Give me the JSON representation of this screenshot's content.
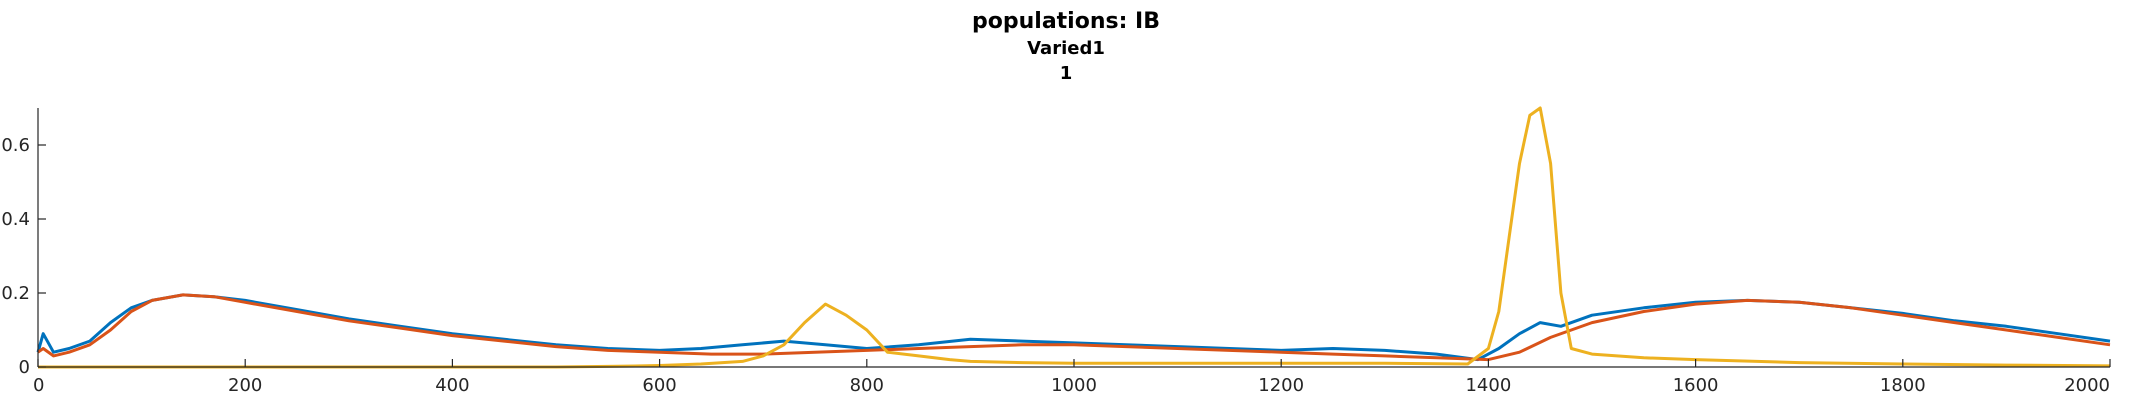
{
  "chart_data": {
    "type": "line",
    "title": "populations: IB",
    "subtitle_lines": [
      "Varied1",
      "1"
    ],
    "xlabel": "",
    "ylabel": "",
    "xlim": [
      0,
      2000
    ],
    "ylim": [
      0,
      0.7
    ],
    "x_ticks": [
      0,
      200,
      400,
      600,
      800,
      1000,
      1200,
      1400,
      1600,
      1800,
      2000
    ],
    "x_tick_labels": [
      "0",
      "200",
      "400",
      "600",
      "800",
      "1000",
      "1200",
      "1400",
      "1600",
      "1800",
      "2000"
    ],
    "y_ticks": [
      0,
      0.2,
      0.4,
      0.6
    ],
    "y_tick_labels": [
      "0",
      "0.2",
      "0.4",
      "0.6"
    ],
    "grid": false,
    "legend": "none",
    "series": [
      {
        "color": "#0072BD",
        "x": [
          0,
          5,
          15,
          30,
          50,
          70,
          90,
          110,
          140,
          170,
          200,
          250,
          300,
          350,
          400,
          450,
          500,
          550,
          600,
          640,
          680,
          720,
          760,
          800,
          850,
          900,
          950,
          1000,
          1050,
          1100,
          1150,
          1200,
          1250,
          1300,
          1350,
          1390,
          1410,
          1430,
          1450,
          1470,
          1500,
          1550,
          1600,
          1650,
          1700,
          1750,
          1800,
          1850,
          1900,
          1950,
          2000
        ],
        "y": [
          0.04,
          0.09,
          0.04,
          0.05,
          0.07,
          0.12,
          0.16,
          0.18,
          0.195,
          0.19,
          0.18,
          0.155,
          0.13,
          0.11,
          0.09,
          0.075,
          0.06,
          0.05,
          0.045,
          0.05,
          0.06,
          0.07,
          0.06,
          0.05,
          0.06,
          0.075,
          0.07,
          0.065,
          0.06,
          0.055,
          0.05,
          0.045,
          0.05,
          0.045,
          0.035,
          0.02,
          0.05,
          0.09,
          0.12,
          0.11,
          0.14,
          0.16,
          0.175,
          0.18,
          0.175,
          0.16,
          0.145,
          0.125,
          0.11,
          0.09,
          0.07
        ]
      },
      {
        "color": "#D95319",
        "x": [
          0,
          5,
          15,
          30,
          50,
          70,
          90,
          110,
          140,
          170,
          200,
          250,
          300,
          350,
          400,
          450,
          500,
          550,
          600,
          650,
          700,
          750,
          800,
          850,
          900,
          950,
          1000,
          1050,
          1100,
          1150,
          1200,
          1250,
          1300,
          1350,
          1400,
          1430,
          1460,
          1500,
          1550,
          1600,
          1650,
          1700,
          1750,
          1800,
          1850,
          1900,
          1950,
          2000
        ],
        "y": [
          0.04,
          0.05,
          0.03,
          0.04,
          0.06,
          0.1,
          0.15,
          0.18,
          0.195,
          0.19,
          0.175,
          0.15,
          0.125,
          0.105,
          0.085,
          0.07,
          0.055,
          0.045,
          0.04,
          0.035,
          0.035,
          0.04,
          0.045,
          0.05,
          0.055,
          0.06,
          0.06,
          0.055,
          0.05,
          0.045,
          0.04,
          0.035,
          0.03,
          0.025,
          0.02,
          0.04,
          0.08,
          0.12,
          0.15,
          0.17,
          0.18,
          0.175,
          0.16,
          0.14,
          0.12,
          0.1,
          0.08,
          0.06
        ]
      },
      {
        "color": "#EDB120",
        "x": [
          0,
          100,
          200,
          300,
          400,
          500,
          560,
          600,
          640,
          680,
          700,
          720,
          740,
          760,
          780,
          800,
          820,
          850,
          880,
          900,
          950,
          1000,
          1100,
          1200,
          1300,
          1380,
          1400,
          1410,
          1420,
          1430,
          1440,
          1450,
          1460,
          1470,
          1480,
          1500,
          1550,
          1600,
          1700,
          1800,
          1900,
          2000
        ],
        "y": [
          0.0,
          0.0,
          0.0,
          0.0,
          0.0,
          0.0,
          0.002,
          0.004,
          0.008,
          0.015,
          0.03,
          0.06,
          0.12,
          0.17,
          0.14,
          0.1,
          0.04,
          0.03,
          0.02,
          0.015,
          0.012,
          0.01,
          0.01,
          0.01,
          0.01,
          0.008,
          0.05,
          0.15,
          0.35,
          0.55,
          0.68,
          0.7,
          0.55,
          0.2,
          0.05,
          0.035,
          0.025,
          0.02,
          0.012,
          0.008,
          0.005,
          0.003
        ]
      }
    ]
  }
}
